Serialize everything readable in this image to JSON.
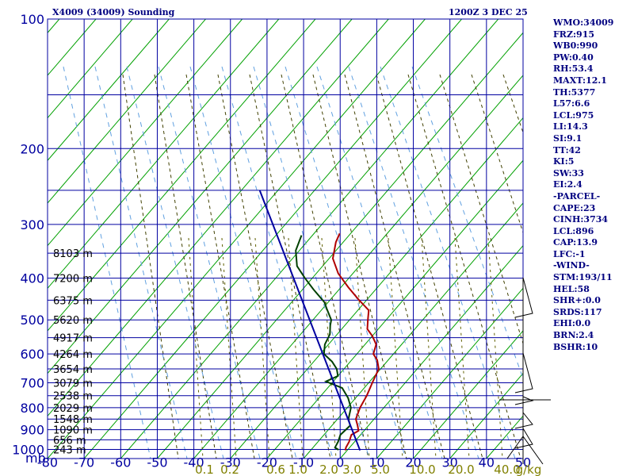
{
  "header": {
    "station_title": "X4009 (34009) Sounding",
    "time_label": "1200Z  3 DEC 25"
  },
  "stats": [
    "WMO:34009",
    "FRZ:915",
    "WB0:990",
    "PW:0.40",
    "RH:53.4",
    "MAXT:12.1",
    "TH:5377",
    "L57:6.6",
    "LCL:975",
    "LI:14.3",
    "SI:9.1",
    "TT:42",
    "KI:5",
    "SW:33",
    "EI:2.4",
    "-PARCEL-",
    "CAPE:23",
    "CINH:3734",
    "LCL:896",
    "CAP:13.9",
    "LFC:-1",
    "-WIND-",
    "STM:193/11",
    "HEL:58",
    "SHR+:0.0",
    "SRDS:117",
    "EHI:0.0",
    "BRN:2.4",
    "BSHR:10"
  ],
  "chart_data": {
    "type": "line",
    "title": "X4009 (34009) Sounding",
    "xlabel": "",
    "ylabel": "mb",
    "x_axis_ticks": [
      "-80",
      "-70",
      "-60",
      "-50",
      "-40",
      "-30",
      "-20",
      "-10",
      "0",
      "10",
      "20",
      "30",
      "40",
      "50"
    ],
    "x_range": [
      -80,
      50
    ],
    "y_axis_ticks": [
      "100",
      "200",
      "300",
      "400",
      "500",
      "600",
      "700",
      "800",
      "900",
      "1000"
    ],
    "y_range": [
      100,
      1050
    ],
    "y_scale": "log",
    "height_labels": [
      {
        "p": 350,
        "label": "8103 m"
      },
      {
        "p": 400,
        "label": "7200 m"
      },
      {
        "p": 450,
        "label": "6375 m"
      },
      {
        "p": 500,
        "label": "5620 m"
      },
      {
        "p": 550,
        "label": "4917 m"
      },
      {
        "p": 600,
        "label": "4264 m"
      },
      {
        "p": 650,
        "label": "3654 m"
      },
      {
        "p": 700,
        "label": "3079 m"
      },
      {
        "p": 750,
        "label": "2538 m"
      },
      {
        "p": 800,
        "label": "2029 m"
      },
      {
        "p": 850,
        "label": "1548 m"
      },
      {
        "p": 900,
        "label": "1090 m"
      },
      {
        "p": 950,
        "label": "656 m"
      },
      {
        "p": 1000,
        "label": "243 m"
      }
    ],
    "mixing_ratio_labels": [
      "0.1",
      "0.2",
      "0.6",
      "1.0",
      "2.0",
      "3.0",
      "5.0",
      "10.0",
      "20.0",
      "40.0",
      "g/kg"
    ],
    "series": [
      {
        "name": "",
        "color": "#b00000",
        "points": [
          [
            -0.5,
            1005
          ],
          [
            -1,
            990
          ],
          [
            -1.5,
            960
          ],
          [
            -2.5,
            925
          ],
          [
            -1.5,
            905
          ],
          [
            -3,
            880
          ],
          [
            -5,
            850
          ],
          [
            -6.5,
            800
          ],
          [
            -7.5,
            750
          ],
          [
            -9,
            700
          ],
          [
            -10.5,
            650
          ],
          [
            -13,
            620
          ],
          [
            -15.5,
            600
          ],
          [
            -17,
            570
          ],
          [
            -20,
            545
          ],
          [
            -23,
            525
          ],
          [
            -25,
            500
          ],
          [
            -27,
            475
          ],
          [
            -32,
            450
          ],
          [
            -38,
            420
          ],
          [
            -44,
            390
          ],
          [
            -49,
            360
          ],
          [
            -52,
            330
          ],
          [
            -53,
            315
          ]
        ]
      },
      {
        "name": "",
        "color": "#004000",
        "points": [
          [
            -2.5,
            1002
          ],
          [
            -4,
            990
          ],
          [
            -4.5,
            960
          ],
          [
            -5.5,
            925
          ],
          [
            -5,
            880
          ],
          [
            -7,
            850
          ],
          [
            -9,
            800
          ],
          [
            -12,
            760
          ],
          [
            -16,
            720
          ],
          [
            -22,
            695
          ],
          [
            -20,
            675
          ],
          [
            -22,
            650
          ],
          [
            -25,
            625
          ],
          [
            -29,
            600
          ],
          [
            -31,
            570
          ],
          [
            -32,
            540
          ],
          [
            -34,
            515
          ],
          [
            -35,
            500
          ],
          [
            -39,
            470
          ],
          [
            -41,
            455
          ],
          [
            -47,
            425
          ],
          [
            -52,
            400
          ],
          [
            -57,
            375
          ],
          [
            -61,
            345
          ],
          [
            -63,
            318
          ]
        ]
      },
      {
        "name": "",
        "color": "#0000a0",
        "points": [
          [
            3.5,
            1005
          ],
          [
            -85,
            250
          ]
        ]
      }
    ]
  }
}
